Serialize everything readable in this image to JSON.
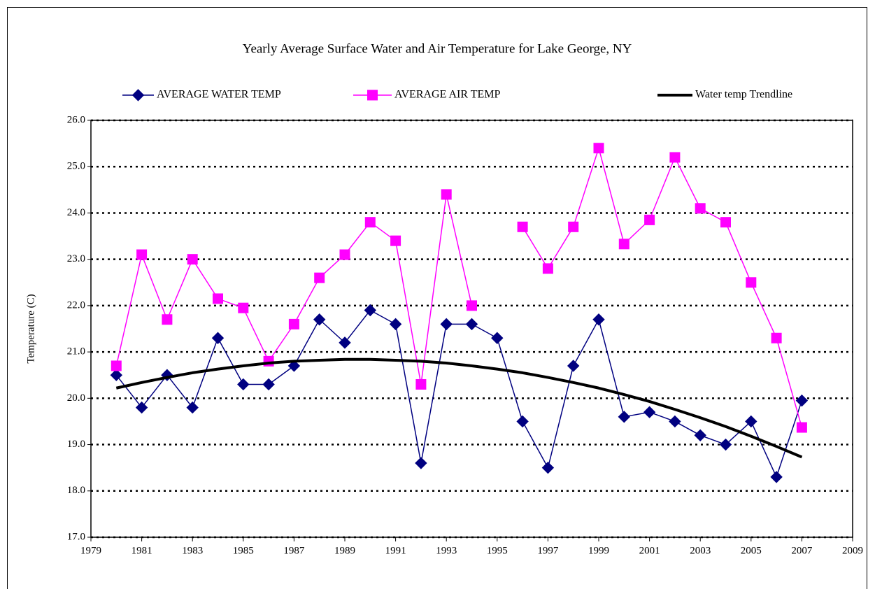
{
  "chart_data": {
    "type": "line",
    "title": "Yearly Average Surface Water and Air Temperature for Lake George, NY",
    "y_label": "Temperature (C)",
    "x": [
      1980,
      1981,
      1982,
      1983,
      1984,
      1985,
      1986,
      1987,
      1988,
      1989,
      1990,
      1991,
      1992,
      1993,
      1994,
      1995,
      1996,
      1997,
      1998,
      1999,
      2000,
      2001,
      2002,
      2003,
      2004,
      2005,
      2006,
      2007
    ],
    "series": [
      {
        "name": "AVERAGE  WATER TEMP",
        "color": "#000080",
        "marker": "diamond",
        "values": [
          20.5,
          19.8,
          20.5,
          19.8,
          21.3,
          20.3,
          20.3,
          20.7,
          21.7,
          21.2,
          21.9,
          21.6,
          18.6,
          21.6,
          21.6,
          21.3,
          19.5,
          18.5,
          20.7,
          21.7,
          19.6,
          19.7,
          19.5,
          19.2,
          19.0,
          19.5,
          18.3,
          19.95
        ]
      },
      {
        "name": "AVERAGE  AIR TEMP",
        "color": "#ff00ff",
        "marker": "square",
        "values": [
          20.7,
          23.1,
          21.7,
          23.0,
          22.15,
          21.95,
          20.8,
          21.6,
          22.6,
          23.1,
          23.8,
          23.4,
          20.3,
          24.4,
          22.0,
          null,
          23.7,
          22.8,
          23.7,
          25.4,
          23.33,
          23.85,
          25.2,
          24.1,
          23.8,
          22.5,
          21.3,
          19.37
        ]
      },
      {
        "name": "Water temp Trendline",
        "color": "#000000",
        "marker": "none",
        "values": [
          20.22,
          20.34,
          20.45,
          20.55,
          20.63,
          20.7,
          20.76,
          20.8,
          20.82,
          20.84,
          20.84,
          20.82,
          20.8,
          20.76,
          20.7,
          20.63,
          20.55,
          20.45,
          20.34,
          20.22,
          20.08,
          19.93,
          19.76,
          19.58,
          19.39,
          19.18,
          18.96,
          18.73
        ]
      }
    ],
    "xlim": [
      1979,
      2009
    ],
    "xticks": [
      1979,
      1981,
      1983,
      1985,
      1987,
      1989,
      1991,
      1993,
      1995,
      1997,
      1999,
      2001,
      2003,
      2005,
      2007,
      2009
    ],
    "ylim": [
      17,
      26
    ],
    "yticks": [
      {
        "value": 17,
        "label": "17.0"
      },
      {
        "value": 18,
        "label": "18.0"
      },
      {
        "value": 19,
        "label": "19.0"
      },
      {
        "value": 20,
        "label": "20.0"
      },
      {
        "value": 21,
        "label": "21.0"
      },
      {
        "value": 22,
        "label": "22.0"
      },
      {
        "value": 23,
        "label": "23.0"
      },
      {
        "value": 24,
        "label": "24.0"
      },
      {
        "value": 25,
        "label": "25.0"
      },
      {
        "value": 26,
        "label": "26.0"
      }
    ],
    "grid": true,
    "legend": "top"
  }
}
